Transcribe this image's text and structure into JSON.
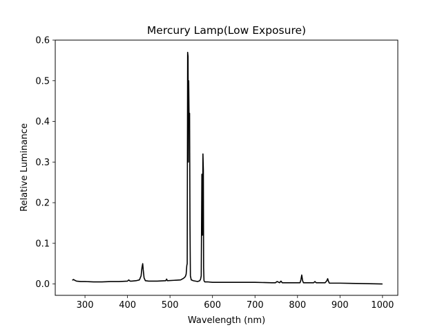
{
  "chart_data": {
    "type": "line",
    "title": "Mercury Lamp(Low Exposure)",
    "xlabel": "Wavelength (nm)",
    "ylabel": "Relative Luminance",
    "xlim": [
      230,
      1036
    ],
    "ylim": [
      -0.028,
      0.6
    ],
    "xticks": [
      300,
      400,
      500,
      600,
      700,
      800,
      900,
      1000
    ],
    "yticks": [
      0.0,
      0.1,
      0.2,
      0.3,
      0.4,
      0.5,
      0.6
    ],
    "xtick_labels": [
      "300",
      "400",
      "500",
      "600",
      "700",
      "800",
      "900",
      "1000"
    ],
    "ytick_labels": [
      "0.0",
      "0.1",
      "0.2",
      "0.3",
      "0.4",
      "0.5",
      "0.6"
    ],
    "grid": false,
    "line_color": "#000000",
    "series": [
      {
        "name": "Mercury Lamp",
        "x": [
          270,
          273,
          276,
          280,
          290,
          300,
          320,
          340,
          360,
          380,
          400,
          403,
          406,
          410,
          420,
          428,
          432,
          434,
          435.8,
          437,
          439,
          442,
          450,
          470,
          490,
          492,
          494,
          510,
          525,
          532,
          536,
          538,
          539.5,
          540.5,
          541.5,
          542.5,
          543.2,
          544,
          545,
          546.1,
          547,
          548,
          550,
          555,
          565,
          570,
          572,
          573.5,
          575,
          576.2,
          577,
          577.5,
          578.5,
          579.1,
          580,
          582,
          590,
          600,
          650,
          690,
          700,
          740,
          748,
          752,
          758,
          761,
          764,
          790,
          806,
          808,
          810,
          812,
          814,
          830,
          838,
          841,
          844,
          865,
          869,
          871,
          873,
          875,
          900,
          950,
          1000
        ],
        "y": [
          0.009,
          0.011,
          0.009,
          0.007,
          0.006,
          0.006,
          0.005,
          0.005,
          0.006,
          0.006,
          0.007,
          0.01,
          0.007,
          0.007,
          0.008,
          0.01,
          0.02,
          0.04,
          0.05,
          0.035,
          0.015,
          0.008,
          0.007,
          0.007,
          0.008,
          0.012,
          0.008,
          0.009,
          0.01,
          0.014,
          0.018,
          0.024,
          0.045,
          0.05,
          0.57,
          0.56,
          0.3,
          0.5,
          0.4,
          0.42,
          0.15,
          0.02,
          0.01,
          0.008,
          0.006,
          0.008,
          0.012,
          0.02,
          0.27,
          0.12,
          0.24,
          0.32,
          0.28,
          0.04,
          0.008,
          0.005,
          0.005,
          0.004,
          0.004,
          0.004,
          0.004,
          0.003,
          0.003,
          0.006,
          0.003,
          0.007,
          0.003,
          0.003,
          0.003,
          0.01,
          0.022,
          0.008,
          0.003,
          0.003,
          0.003,
          0.006,
          0.003,
          0.003,
          0.008,
          0.013,
          0.006,
          0.002,
          0.002,
          0.001,
          0.0
        ]
      }
    ]
  }
}
